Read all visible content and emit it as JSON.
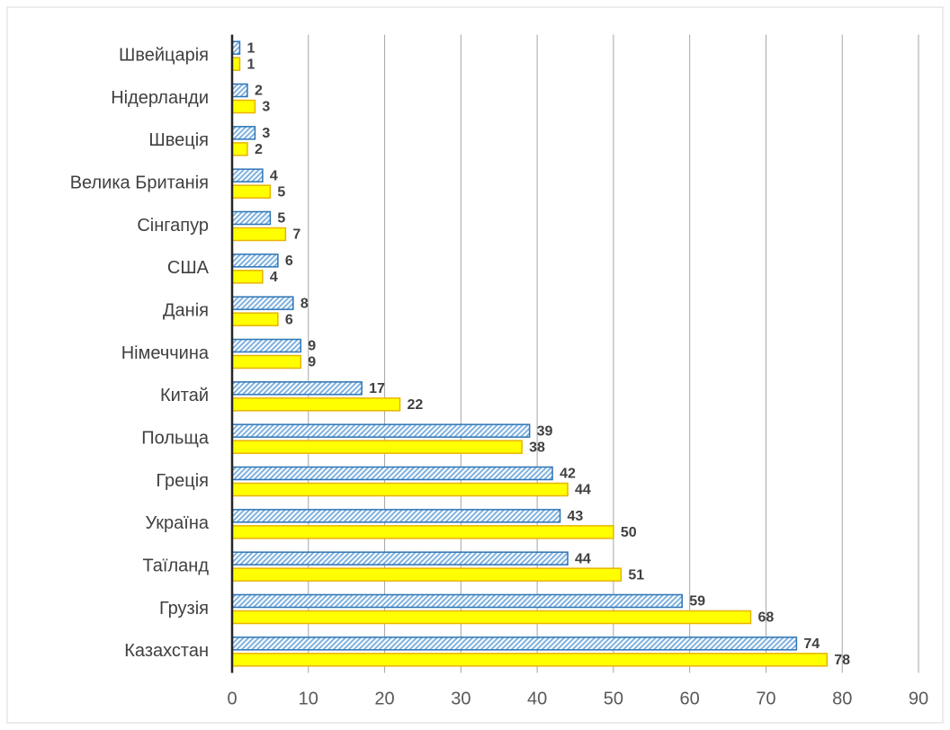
{
  "chart_data": {
    "type": "hbar",
    "categories": [
      "Швейцарія",
      "Нідерланди",
      "Швеція",
      "Велика Британія",
      "Сінгапур",
      "США",
      "Данія",
      "Німеччина",
      "Китай",
      "Польща",
      "Греція",
      "Україна",
      "Таїланд",
      "Грузія",
      "Казахстан"
    ],
    "series": [
      {
        "color": "#2e75b6",
        "pattern": "hatched",
        "values": [
          1,
          2,
          3,
          4,
          5,
          6,
          8,
          9,
          17,
          39,
          42,
          43,
          44,
          59,
          74
        ]
      },
      {
        "color": "#ffff00",
        "values": [
          1,
          3,
          2,
          5,
          7,
          4,
          6,
          9,
          22,
          38,
          44,
          50,
          51,
          68,
          78
        ]
      }
    ],
    "xlim": [
      0,
      90
    ],
    "xticks": [
      0,
      10,
      20,
      30,
      40,
      50,
      60,
      70,
      80,
      90
    ],
    "grid": true
  }
}
